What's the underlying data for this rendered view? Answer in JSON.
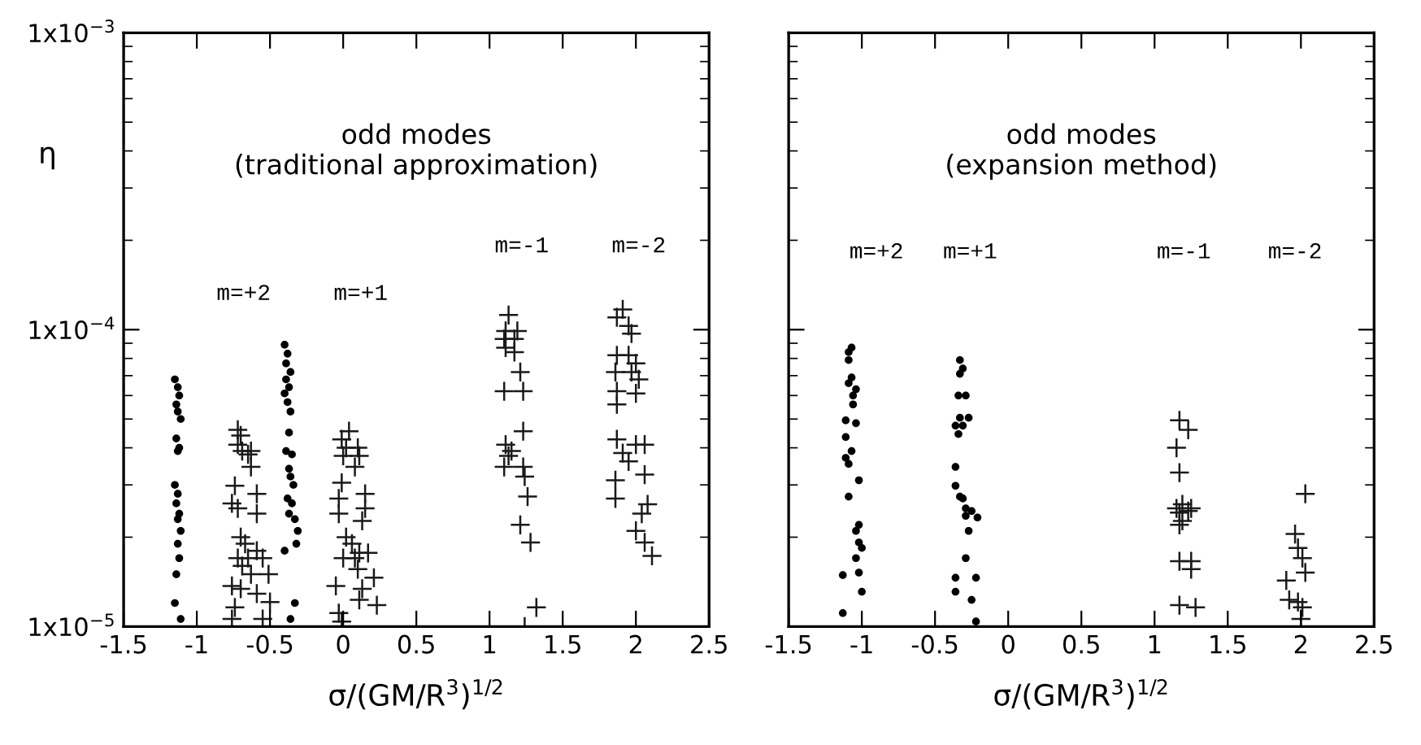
{
  "chart_data": [
    {
      "type": "scatter",
      "title": "odd modes\n(traditional approximation)",
      "xlabel": "σ/(GM/R$^{3}$)$^{1/2}$",
      "ylabel": "η",
      "log": "y",
      "grid": false,
      "legend": false,
      "xlim": [
        -1.5,
        2.5
      ],
      "xticks": [
        -1.5,
        -1,
        -0.5,
        0,
        0.5,
        1,
        1.5,
        2,
        2.5
      ],
      "ylim": [
        1e-05,
        0.001
      ],
      "yticks": [
        {
          "value": 1e-05,
          "label": "1x10$^{−5}$"
        },
        {
          "value": 0.0001,
          "label": "1x10$^{−4}$"
        },
        {
          "value": 0.001,
          "label": "1x10$^{−3}$"
        }
      ],
      "annotations": [
        "m=+2",
        "m=+1",
        "m=-1",
        "m=-2"
      ],
      "series": [
        {
          "marker": "circle",
          "color": "#000000",
          "x": [
            -1.15,
            -1.13,
            -1.12,
            -1.14,
            -1.13,
            -1.11,
            -1.14,
            -1.12,
            -1.13,
            -1.15,
            -1.13,
            -1.14,
            -1.12,
            -1.13,
            -1.11,
            -1.13,
            -1.12,
            -1.14,
            -1.15,
            -1.11,
            -0.4,
            -0.38,
            -0.39,
            -0.36,
            -0.39,
            -0.37,
            -0.4,
            -0.38,
            -0.36,
            -0.37,
            -0.39,
            -0.35,
            -0.37,
            -0.36,
            -0.34,
            -0.38,
            -0.35,
            -0.37,
            -0.33,
            -0.31,
            -0.32,
            -0.4,
            -0.33,
            -0.36
          ],
          "values": [
            6.8e-05,
            6.4e-05,
            6e-05,
            5.6e-05,
            5.3e-05,
            5e-05,
            4.3e-05,
            4e-05,
            3.9e-05,
            3e-05,
            2.8e-05,
            2.6e-05,
            2.4e-05,
            2.3e-05,
            2.1e-05,
            1.9e-05,
            1.7e-05,
            1.5e-05,
            1.2e-05,
            1.06e-05,
            8.9e-05,
            8.3e-05,
            7.7e-05,
            7.2e-05,
            6.8e-05,
            6.4e-05,
            6.1e-05,
            5.7e-05,
            5.3e-05,
            4.5e-05,
            3.9e-05,
            3.8e-05,
            3.4e-05,
            3.2e-05,
            3e-05,
            2.7e-05,
            2.6e-05,
            2.4e-05,
            2.3e-05,
            2.1e-05,
            1.9e-05,
            1.8e-05,
            1.2e-05,
            1.06e-05
          ]
        },
        {
          "marker": "cross",
          "color": "#1a1a1a",
          "x": [
            -0.72,
            -0.7,
            -0.72,
            -0.69,
            -0.63,
            -0.65,
            -0.63,
            -0.74,
            -0.59,
            -0.76,
            -0.72,
            -0.59,
            -0.7,
            -0.67,
            -0.59,
            -0.72,
            -0.65,
            -0.55,
            -0.69,
            -0.63,
            -0.51,
            -0.76,
            -0.7,
            -0.59,
            -0.5,
            -0.74,
            -0.76,
            -0.55,
            0.04,
            -0.01,
            0.02,
            0.1,
            0.0,
            0.11,
            0.08,
            -0.01,
            0.15,
            -0.03,
            0.15,
            -0.03,
            0.13,
            0.02,
            0.06,
            0.11,
            0.17,
            0.0,
            0.08,
            0.1,
            0.21,
            -0.05,
            0.13,
            0.11,
            0.23,
            -0.03,
            -0.01,
            1.13,
            1.11,
            1.19,
            1.1,
            1.17,
            1.11,
            1.17,
            1.21,
            1.1,
            1.23,
            1.23,
            1.11,
            1.15,
            1.13,
            1.1,
            1.23,
            1.24,
            1.26,
            1.21,
            1.28,
            1.32,
            1.24,
            1.91,
            1.87,
            1.95,
            1.97,
            1.87,
            1.95,
            2.0,
            1.86,
            1.97,
            2.02,
            1.87,
            2.0,
            1.87,
            1.87,
            2.0,
            2.06,
            1.91,
            1.95,
            2.06,
            1.86,
            1.86,
            2.08,
            2.04,
            2.0,
            2.06,
            2.11
          ],
          "values": [
            4.6e-05,
            4.4e-05,
            4.1e-05,
            3.9e-05,
            3.9e-05,
            3.8e-05,
            3.45e-05,
            2.98e-05,
            2.8e-05,
            2.6e-05,
            2.5e-05,
            2.4e-05,
            2e-05,
            1.9e-05,
            1.8e-05,
            1.7e-05,
            1.7e-05,
            1.7e-05,
            1.6e-05,
            1.5e-05,
            1.5e-05,
            1.37e-05,
            1.34e-05,
            1.29e-05,
            1.21e-05,
            1.16e-05,
            1.06e-05,
            1.06e-05,
            4.55e-05,
            4.27e-05,
            4e-05,
            4e-05,
            3.76e-05,
            3.76e-05,
            3.45e-05,
            3.05e-05,
            2.8e-05,
            2.7e-05,
            2.5e-05,
            2.4e-05,
            2.27e-05,
            2e-05,
            1.9e-05,
            1.77e-05,
            1.77e-05,
            1.7e-05,
            1.7e-05,
            1.56e-05,
            1.46e-05,
            1.37e-05,
            1.34e-05,
            1.23e-05,
            1.18e-05,
            1.11e-05,
            1.04e-05,
            0.000112,
            9.9e-05,
            9.9e-05,
            9.3e-05,
            9.3e-05,
            8.7e-05,
            8.4e-05,
            7.2e-05,
            6.2e-05,
            6.2e-05,
            4.55e-05,
            4.1e-05,
            3.9e-05,
            3.76e-05,
            3.45e-05,
            3.45e-05,
            3.2e-05,
            2.74e-05,
            2.2e-05,
            1.92e-05,
            1.16e-05,
            1e-05,
            0.000117,
            0.00011,
            0.000103,
            9.7e-05,
            8.2e-05,
            8.2e-05,
            7.7e-05,
            7.2e-05,
            7.2e-05,
            6.8e-05,
            6.2e-05,
            6.1e-05,
            5.6e-05,
            4.27e-05,
            4.1e-05,
            4.1e-05,
            3.84e-05,
            3.6e-05,
            3.25e-05,
            3.11e-05,
            2.7e-05,
            2.58e-05,
            2.4e-05,
            2.1e-05,
            1.92e-05,
            1.73e-05
          ]
        }
      ]
    },
    {
      "type": "scatter",
      "title": "odd modes\n(expansion method)",
      "xlabel": "σ/(GM/R$^{3}$)$^{1/2}$",
      "log": "y",
      "grid": false,
      "legend": false,
      "tick_labels": "x",
      "xlim": [
        -1.5,
        2.5
      ],
      "xticks": [
        -1.5,
        -1,
        -0.5,
        0,
        0.5,
        1,
        1.5,
        2,
        2.5
      ],
      "ylim": [
        1e-05,
        0.001
      ],
      "yticks": [
        1e-05,
        0.0001,
        0.001
      ],
      "annotations": [
        "m=+2",
        "m=+1",
        "m=-1",
        "m=-2"
      ],
      "series": [
        {
          "marker": "circle",
          "color": "#000000",
          "x": [
            -1.07,
            -1.09,
            -1.09,
            -1.07,
            -1.09,
            -1.04,
            -1.06,
            -1.06,
            -1.11,
            -1.04,
            -1.11,
            -1.07,
            -1.11,
            -1.09,
            -1.02,
            -1.09,
            -1.02,
            -1.04,
            -1.02,
            -1.0,
            -1.04,
            -1.02,
            -1.13,
            -1.0,
            -1.13,
            -0.33,
            -0.31,
            -0.33,
            -0.34,
            -0.29,
            -0.33,
            -0.27,
            -0.36,
            -0.31,
            -0.34,
            -0.36,
            -0.36,
            -0.33,
            -0.31,
            -0.29,
            -0.29,
            -0.25,
            -0.21,
            -0.27,
            -0.29,
            -0.36,
            -0.22,
            -0.36,
            -0.25,
            -0.22
          ],
          "values": [
            8.7e-05,
            8.4e-05,
            7.9e-05,
            6.9e-05,
            6.6e-05,
            6.3e-05,
            6e-05,
            5.6e-05,
            4.95e-05,
            4.84e-05,
            4.35e-05,
            3.9e-05,
            3.7e-05,
            3.53e-05,
            3.11e-05,
            2.74e-05,
            2.2e-05,
            2.1e-05,
            1.92e-05,
            1.84e-05,
            1.7e-05,
            1.52e-05,
            1.49e-05,
            1.31e-05,
            1.11e-05,
            7.9e-05,
            7.4e-05,
            7.1e-05,
            6e-05,
            6e-05,
            5.05e-05,
            5.05e-05,
            4.75e-05,
            4.75e-05,
            4.45e-05,
            3.45e-05,
            2.98e-05,
            2.74e-05,
            2.7e-05,
            2.5e-05,
            2.36e-05,
            2.45e-05,
            2.33e-05,
            2.1e-05,
            1.7e-05,
            1.46e-05,
            1.46e-05,
            1.31e-05,
            1.23e-05,
            1.04e-05
          ]
        },
        {
          "marker": "cross",
          "color": "#1a1a1a",
          "x": [
            1.17,
            1.23,
            1.15,
            1.17,
            1.15,
            1.19,
            1.25,
            1.17,
            1.23,
            1.19,
            1.17,
            1.17,
            1.25,
            1.25,
            1.17,
            1.28,
            2.03,
            1.96,
            1.98,
            2.01,
            2.03,
            1.9,
            1.92,
            1.98,
            2.01,
            2.0
          ],
          "values": [
            4.95e-05,
            4.6e-05,
            4e-05,
            3.3e-05,
            2.5e-05,
            2.58e-05,
            2.5e-05,
            2.42e-05,
            2.45e-05,
            2.27e-05,
            2.2e-05,
            1.66e-05,
            1.66e-05,
            1.56e-05,
            1.18e-05,
            1.16e-05,
            2.8e-05,
            2.05e-05,
            1.84e-05,
            1.7e-05,
            1.52e-05,
            1.43e-05,
            1.23e-05,
            1.21e-05,
            1.16e-05,
            1.06e-05
          ]
        }
      ]
    }
  ]
}
